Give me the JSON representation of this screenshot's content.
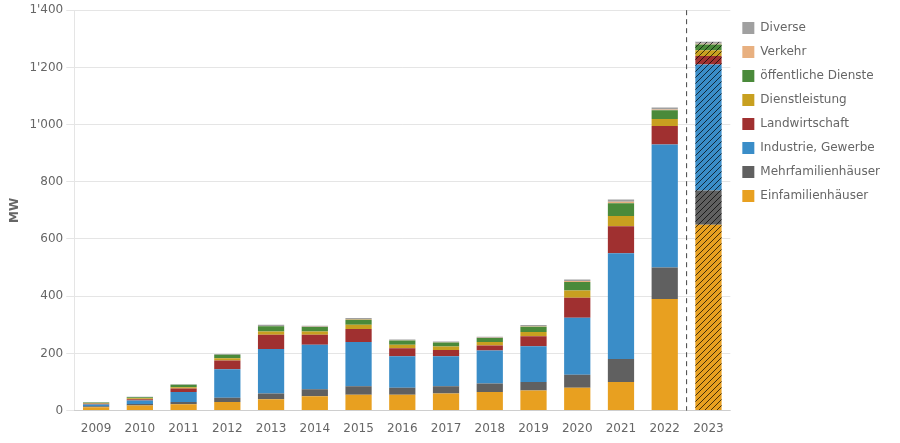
{
  "chart_data": {
    "type": "bar",
    "stacked": true,
    "categories": [
      2009,
      2010,
      2011,
      2012,
      2013,
      2014,
      2015,
      2016,
      2017,
      2018,
      2019,
      2020,
      2021,
      2022,
      2023
    ],
    "series": [
      {
        "name": "Einfamilienhäuser",
        "color": "#E8A020",
        "values": [
          12,
          18,
          22,
          30,
          40,
          50,
          55,
          55,
          60,
          65,
          70,
          80,
          100,
          390,
          650
        ]
      },
      {
        "name": "Mehrfamilienhäuser",
        "color": "#606060",
        "values": [
          3,
          5,
          8,
          15,
          20,
          25,
          30,
          25,
          25,
          30,
          30,
          45,
          80,
          110,
          120
        ]
      },
      {
        "name": "Industrie, Gewerbe",
        "color": "#3A8DC8",
        "values": [
          6,
          12,
          35,
          100,
          155,
          155,
          155,
          110,
          105,
          115,
          125,
          200,
          370,
          430,
          440
        ]
      },
      {
        "name": "Landwirtschaft",
        "color": "#A03030",
        "values": [
          3,
          5,
          12,
          30,
          50,
          35,
          45,
          28,
          22,
          18,
          35,
          70,
          95,
          65,
          30
        ]
      },
      {
        "name": "Dienstleistung",
        "color": "#C8A020",
        "values": [
          2,
          3,
          5,
          8,
          12,
          12,
          15,
          12,
          12,
          12,
          15,
          25,
          35,
          25,
          20
        ]
      },
      {
        "name": "öffentliche Dienste",
        "color": "#4A8A3A",
        "values": [
          2,
          4,
          8,
          12,
          18,
          15,
          18,
          15,
          14,
          14,
          18,
          30,
          45,
          30,
          20
        ]
      },
      {
        "name": "Verkehr",
        "color": "#E8B080",
        "values": [
          0,
          0,
          0,
          0,
          1,
          1,
          2,
          1,
          1,
          1,
          2,
          3,
          5,
          3,
          3
        ]
      },
      {
        "name": "Diverse",
        "color": "#A0A0A0",
        "values": [
          1,
          1,
          2,
          3,
          4,
          4,
          4,
          3,
          3,
          3,
          4,
          5,
          8,
          7,
          7
        ]
      }
    ],
    "ylabel": "MW",
    "ylim": [
      0,
      1400
    ],
    "yticks": [
      0,
      200,
      400,
      600,
      800,
      {
        "value": 1000,
        "label": "1'000"
      },
      {
        "value": 1200,
        "label": "1'200"
      },
      {
        "value": 1400,
        "label": "1'400"
      }
    ],
    "grid": true,
    "legend": "right"
  }
}
